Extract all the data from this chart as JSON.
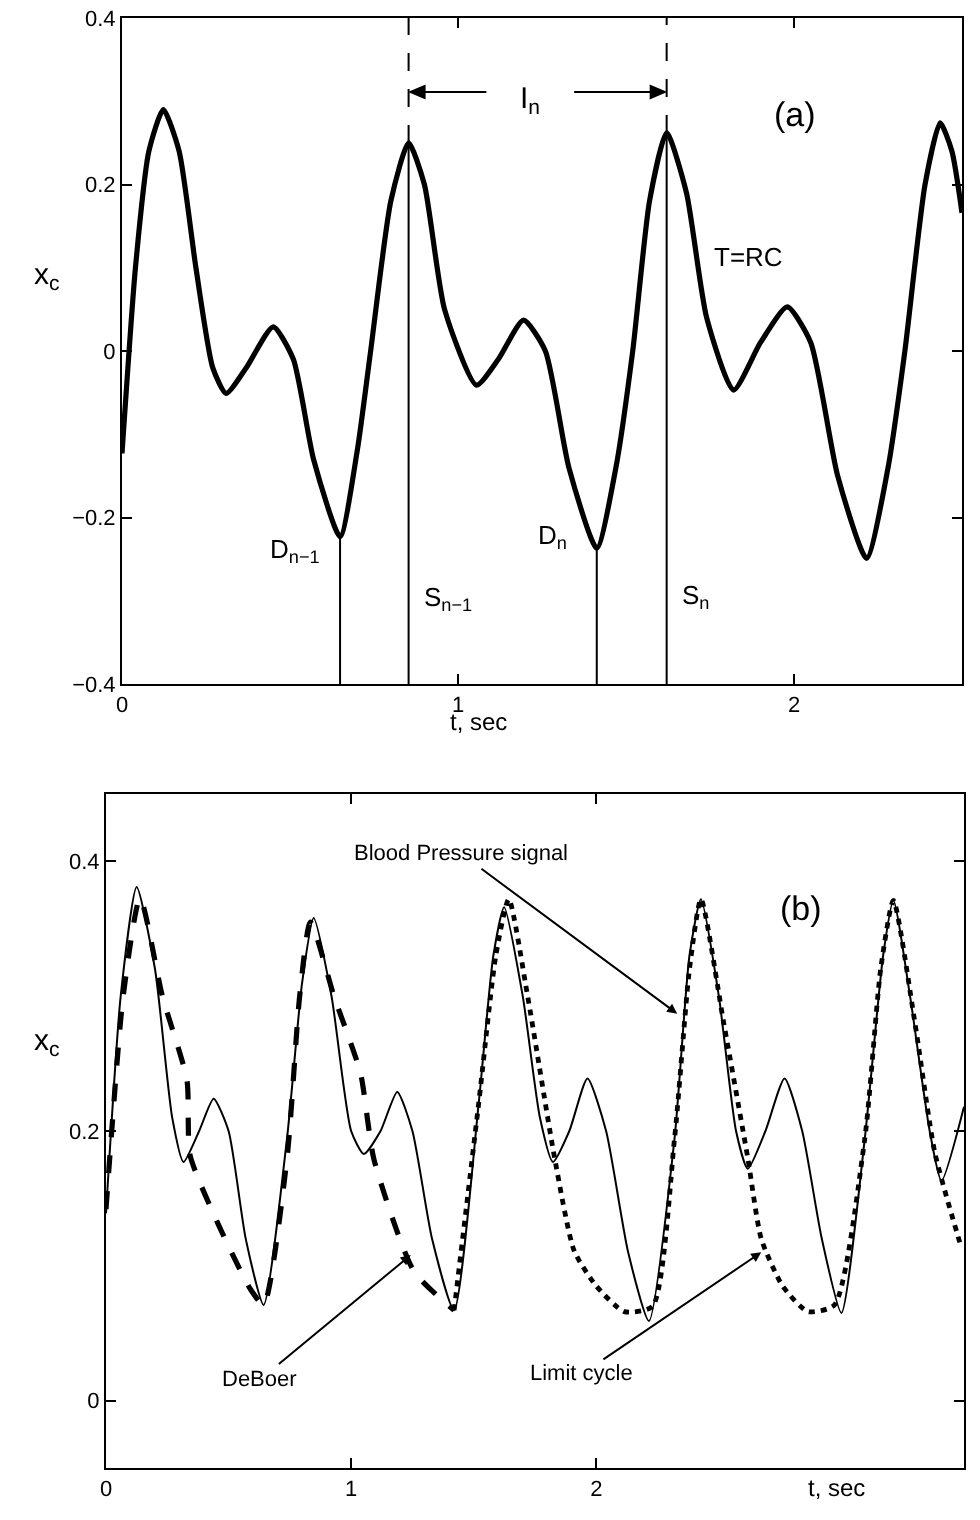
{
  "chart_data": [
    {
      "type": "line",
      "xlabel": "t, sec",
      "ylabel": "x$_{c}$",
      "xlim": [
        0,
        2.5
      ],
      "ylim": [
        -0.4,
        0.4
      ],
      "xticks": [
        0,
        1,
        2
      ],
      "yticks": [
        {
          "value": -0.4,
          "label": "−0.4"
        },
        {
          "value": -0.2,
          "label": "−0.2"
        },
        0,
        0.2,
        0.4
      ],
      "series": [
        {
          "color": "#000000",
          "x": [
            0,
            0.04,
            0.08,
            0.123,
            0.17,
            0.22,
            0.27,
            0.31,
            0.37,
            0.45,
            0.51,
            0.57,
            0.649,
            0.7,
            0.74,
            0.8,
            0.853,
            0.9,
            0.96,
            1.055,
            1.12,
            1.195,
            1.26,
            1.33,
            1.413,
            1.47,
            1.52,
            1.57,
            1.621,
            1.68,
            1.74,
            1.82,
            1.9,
            1.98,
            2.05,
            2.13,
            2.216,
            2.28,
            2.33,
            2.39,
            2.435,
            2.47,
            2.5
          ],
          "values": [
            -0.123,
            0.1,
            0.24,
            0.29,
            0.24,
            0.1,
            -0.02,
            -0.051,
            -0.02,
            0.029,
            -0.01,
            -0.13,
            -0.223,
            -0.12,
            0,
            0.18,
            0.25,
            0.2,
            0.05,
            -0.041,
            -0.01,
            0.037,
            0,
            -0.14,
            -0.237,
            -0.14,
            0,
            0.18,
            0.262,
            0.19,
            0.04,
            -0.047,
            0.01,
            0.053,
            0.01,
            -0.15,
            -0.249,
            -0.14,
            0,
            0.2,
            0.274,
            0.24,
            0.166
          ]
        },
        {
          "color": "#000000",
          "x": [
            0.649,
            0.649
          ],
          "values": [
            -0.4,
            -0.223
          ]
        },
        {
          "color": "#000000",
          "x": [
            0.853,
            0.853
          ],
          "values": [
            -0.4,
            0.25
          ]
        },
        {
          "color": "#000000",
          "x": [
            0.853,
            0.853
          ],
          "values": [
            0.25,
            0.4
          ],
          "line_style": "dashed"
        },
        {
          "color": "#000000",
          "x": [
            1.413,
            1.413
          ],
          "values": [
            -0.4,
            -0.237
          ]
        },
        {
          "color": "#000000",
          "x": [
            1.621,
            1.621
          ],
          "values": [
            -0.4,
            0.262
          ]
        },
        {
          "color": "#000000",
          "x": [
            1.621,
            1.621
          ],
          "values": [
            0.262,
            0.4
          ],
          "line_style": "dashed"
        }
      ],
      "annotations": [
        "(a)",
        "T=RC",
        "I$_{n}$",
        "D$_{n−1}$",
        "S$_{n−1}$",
        "D$_{n}$",
        "S$_{n}$"
      ]
    },
    {
      "type": "line",
      "xlabel": "t, sec",
      "ylabel": "x$_{c}$",
      "xlim": [
        0,
        3.5
      ],
      "ylim": [
        -0.05,
        0.45
      ],
      "xticks": [
        0,
        1,
        2
      ],
      "yticks": [
        0,
        0.2,
        0.4
      ],
      "series": [
        {
          "color": "#000000",
          "x": [
            0,
            0.06,
            0.125,
            0.2,
            0.27,
            0.316,
            0.38,
            0.439,
            0.5,
            0.57,
            0.643,
            0.738,
            0.8,
            0.847,
            0.92,
            1.0,
            1.052,
            1.12,
            1.188,
            1.25,
            1.33,
            1.42,
            1.52,
            1.58,
            1.624,
            1.7,
            1.77,
            1.823,
            1.89,
            1.964,
            2.04,
            2.13,
            2.215,
            2.319,
            2.38,
            2.427,
            2.5,
            2.57,
            2.618,
            2.69,
            2.768,
            2.84,
            2.92,
            3.0,
            3.095,
            3.17,
            3.212,
            3.28,
            3.36,
            3.408,
            3.5
          ],
          "values": [
            0.139,
            0.3,
            0.381,
            0.32,
            0.21,
            0.177,
            0.2,
            0.224,
            0.2,
            0.12,
            0.071,
            0.194,
            0.31,
            0.358,
            0.3,
            0.2,
            0.183,
            0.2,
            0.229,
            0.2,
            0.12,
            0.067,
            0.22,
            0.33,
            0.366,
            0.3,
            0.21,
            0.177,
            0.2,
            0.239,
            0.2,
            0.11,
            0.059,
            0.194,
            0.33,
            0.372,
            0.3,
            0.2,
            0.172,
            0.2,
            0.239,
            0.2,
            0.12,
            0.065,
            0.194,
            0.33,
            0.371,
            0.3,
            0.2,
            0.163,
            0.218
          ]
        },
        {
          "color": "#000000",
          "line_style": "dashed",
          "x": [
            0,
            0.07,
            0.139,
            0.23,
            0.33,
            0.343,
            0.46,
            0.588,
            0.643,
            0.738,
            0.79,
            0.834,
            0.93,
            1.038,
            1.093,
            1.256,
            1.42
          ],
          "values": [
            0.142,
            0.3,
            0.373,
            0.3,
            0.238,
            0.182,
            0.13,
            0.083,
            0.071,
            0.179,
            0.3,
            0.355,
            0.3,
            0.243,
            0.179,
            0.096,
            0.067
          ]
        },
        {
          "color": "#000000",
          "line_style": "dotted",
          "x": [
            1.42,
            1.52,
            1.59,
            1.643,
            1.72,
            1.83,
            1.91,
            2.0,
            2.114,
            2.23,
            2.319,
            2.38,
            2.427,
            2.52,
            2.618,
            2.673,
            2.76,
            2.863,
            2.972,
            3.095,
            3.16,
            3.212,
            3.3,
            3.381,
            3.49
          ],
          "values": [
            0.067,
            0.22,
            0.33,
            0.372,
            0.3,
            0.18,
            0.111,
            0.085,
            0.066,
            0.07,
            0.194,
            0.32,
            0.372,
            0.28,
            0.18,
            0.12,
            0.085,
            0.066,
            0.071,
            0.194,
            0.32,
            0.371,
            0.28,
            0.184,
            0.113
          ]
        }
      ],
      "annotations": [
        "(b)",
        {
          "text": "Blood Pressure signal",
          "x": 2.33,
          "y": 0.287
        },
        {
          "text": "DeBoer",
          "x": 1.243,
          "y": 0.108
        },
        {
          "text": "Limit cycle",
          "x": 2.673,
          "y": 0.11
        }
      ]
    }
  ]
}
